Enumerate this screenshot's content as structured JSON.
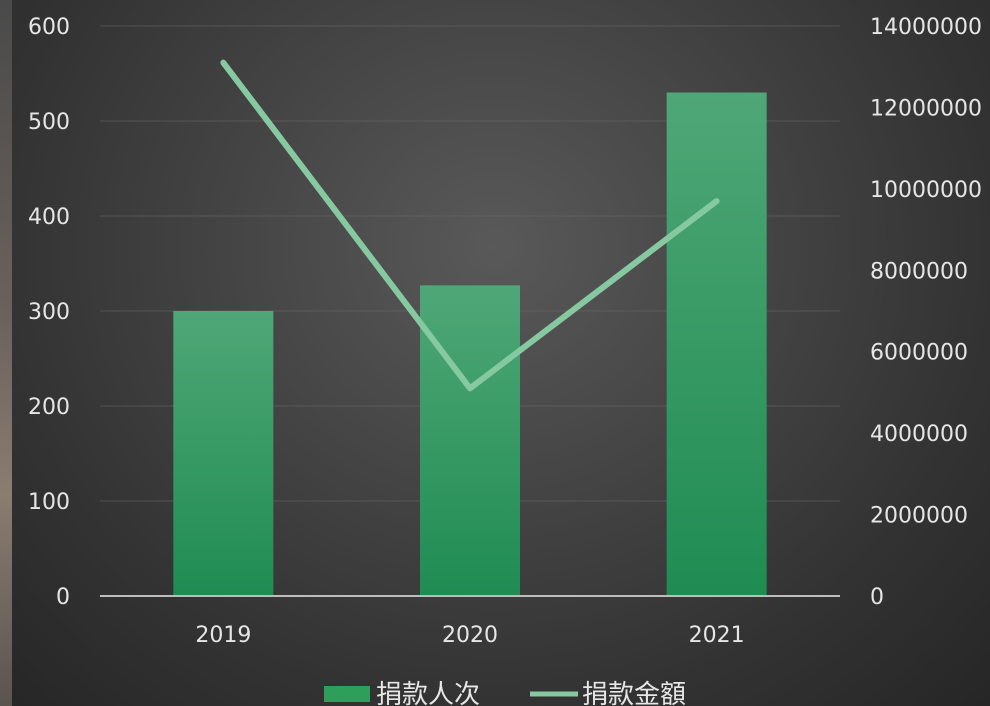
{
  "chart_data": {
    "type": "bar",
    "categories": [
      "2019",
      "2020",
      "2021"
    ],
    "series": [
      {
        "name": "捐款人次",
        "type": "bar",
        "axis": "left",
        "values": [
          300,
          327,
          530
        ],
        "color": "#2e9e5b"
      },
      {
        "name": "捐款金額",
        "type": "line",
        "axis": "right",
        "values": [
          13100000,
          5100000,
          9700000
        ],
        "color": "#86c9a0"
      }
    ],
    "y_left": {
      "ylim": [
        0,
        600
      ],
      "ticks": [
        "0",
        "100",
        "200",
        "300",
        "400",
        "500",
        "600"
      ]
    },
    "y_right": {
      "ylim": [
        0,
        14000000
      ],
      "ticks": [
        "0",
        "2000000",
        "4000000",
        "6000000",
        "8000000",
        "10000000",
        "12000000",
        "14000000"
      ]
    },
    "grid": true,
    "legend_position": "bottom",
    "legend": {
      "items": [
        "捐款人次",
        "捐款金額"
      ]
    }
  }
}
